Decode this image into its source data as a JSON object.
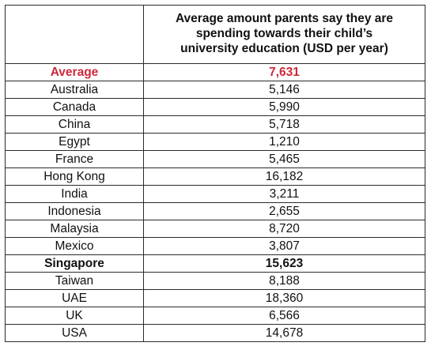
{
  "header": {
    "country_col": "",
    "value_col_lines": [
      "Average amount parents say they are",
      "spending towards their child’s",
      "university education (USD per year)"
    ]
  },
  "rows": [
    {
      "country": "Average",
      "value": "7,631"
    },
    {
      "country": "Australia",
      "value": "5,146"
    },
    {
      "country": "Canada",
      "value": "5,990"
    },
    {
      "country": "China",
      "value": "5,718"
    },
    {
      "country": "Egypt",
      "value": "1,210"
    },
    {
      "country": "France",
      "value": "5,465"
    },
    {
      "country": "Hong Kong",
      "value": "16,182"
    },
    {
      "country": "India",
      "value": "3,211"
    },
    {
      "country": "Indonesia",
      "value": "2,655"
    },
    {
      "country": "Malaysia",
      "value": "8,720"
    },
    {
      "country": "Mexico",
      "value": "3,807"
    },
    {
      "country": "Singapore",
      "value": "15,623"
    },
    {
      "country": "Taiwan",
      "value": "8,188"
    },
    {
      "country": "UAE",
      "value": "18,360"
    },
    {
      "country": "UK",
      "value": "6,566"
    },
    {
      "country": "USA",
      "value": "14,678"
    }
  ],
  "colors": {
    "average_text": "#cc2a3a",
    "border": "#2b2b2b",
    "text": "#111111"
  }
}
